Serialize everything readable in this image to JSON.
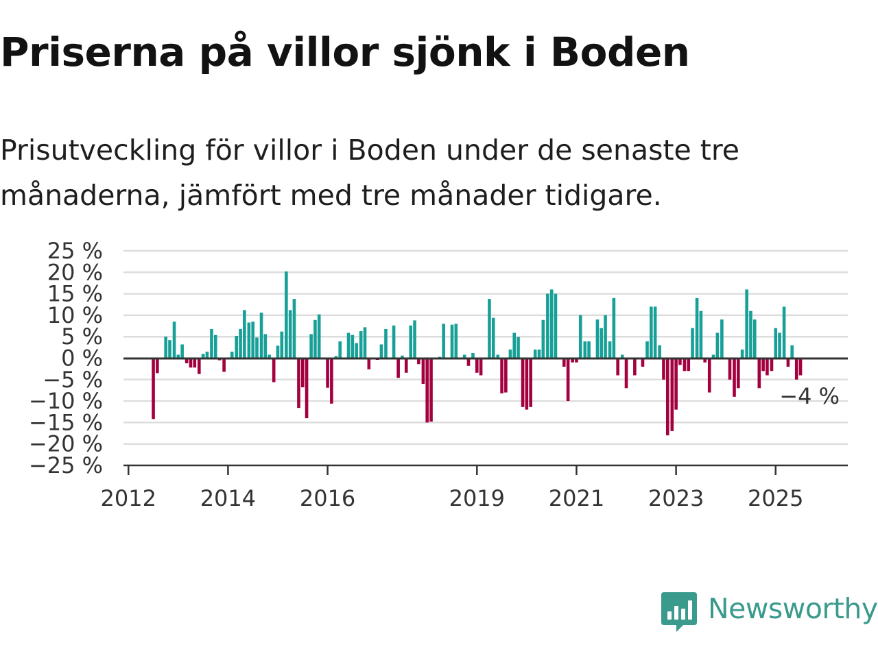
{
  "title": "Priserna på villor sjönk i Boden",
  "subtitle": "Prisutveckling för villor i Boden under de senaste tre månaderna, jämfört med tre månader tidigare.",
  "brand": {
    "name": "Newsworthy",
    "color": "#3a9a8c",
    "icon": "bar-chart-speech-bubble-icon"
  },
  "colors": {
    "positive": "#17a097",
    "negative": "#a3003f",
    "grid": "#dddddd",
    "zero_line": "#333333"
  },
  "chart_data": {
    "type": "bar",
    "title": "Priserna på villor sjönk i Boden",
    "xlabel": "",
    "ylabel": "",
    "ylim": [
      -25,
      25
    ],
    "yticks": [
      25,
      20,
      15,
      10,
      5,
      0,
      -5,
      -10,
      -15,
      -20,
      -25
    ],
    "ytick_labels": [
      "25 %",
      "20 %",
      "15 %",
      "10 %",
      "5 %",
      "0 %",
      "−5 %",
      "−10 %",
      "−15 %",
      "−20 %",
      "−25 %"
    ],
    "xticks": [
      2012,
      2014,
      2016,
      2019,
      2021,
      2023,
      2025
    ],
    "xtick_labels": [
      "2012",
      "2014",
      "2016",
      "2019",
      "2021",
      "2023",
      "2025"
    ],
    "xlim": [
      2011.9,
      2026.45
    ],
    "grid": true,
    "legend": "none",
    "last_value_label": "−4 %",
    "bars": [
      {
        "x": 2012.5,
        "v": -14.2
      },
      {
        "x": 2012.58,
        "v": -3.5
      },
      {
        "x": 2012.75,
        "v": 5.0
      },
      {
        "x": 2012.83,
        "v": 4.2
      },
      {
        "x": 2012.92,
        "v": 8.5
      },
      {
        "x": 2013.0,
        "v": 0.8
      },
      {
        "x": 2013.08,
        "v": 3.2
      },
      {
        "x": 2013.17,
        "v": -1.2
      },
      {
        "x": 2013.25,
        "v": -2.2
      },
      {
        "x": 2013.33,
        "v": -2.2
      },
      {
        "x": 2013.42,
        "v": -3.7
      },
      {
        "x": 2013.5,
        "v": 1.0
      },
      {
        "x": 2013.58,
        "v": 1.5
      },
      {
        "x": 2013.67,
        "v": 6.8
      },
      {
        "x": 2013.75,
        "v": 5.4
      },
      {
        "x": 2013.83,
        "v": -0.5
      },
      {
        "x": 2013.92,
        "v": -3.2
      },
      {
        "x": 2014.08,
        "v": 1.5
      },
      {
        "x": 2014.17,
        "v": 5.2
      },
      {
        "x": 2014.25,
        "v": 6.8
      },
      {
        "x": 2014.33,
        "v": 11.2
      },
      {
        "x": 2014.42,
        "v": 8.3
      },
      {
        "x": 2014.5,
        "v": 8.5
      },
      {
        "x": 2014.58,
        "v": 4.8
      },
      {
        "x": 2014.67,
        "v": 10.6
      },
      {
        "x": 2014.75,
        "v": 5.6
      },
      {
        "x": 2014.83,
        "v": 0.8
      },
      {
        "x": 2014.92,
        "v": -5.6
      },
      {
        "x": 2015.0,
        "v": 2.9
      },
      {
        "x": 2015.08,
        "v": 6.2
      },
      {
        "x": 2015.17,
        "v": 20.2
      },
      {
        "x": 2015.25,
        "v": 11.2
      },
      {
        "x": 2015.33,
        "v": 13.8
      },
      {
        "x": 2015.42,
        "v": -11.6
      },
      {
        "x": 2015.5,
        "v": -6.8
      },
      {
        "x": 2015.58,
        "v": -14.0
      },
      {
        "x": 2015.67,
        "v": 5.6
      },
      {
        "x": 2015.75,
        "v": 8.9
      },
      {
        "x": 2015.83,
        "v": 10.2
      },
      {
        "x": 2016.0,
        "v": -6.9
      },
      {
        "x": 2016.08,
        "v": -10.6
      },
      {
        "x": 2016.17,
        "v": 0.5
      },
      {
        "x": 2016.25,
        "v": 3.9
      },
      {
        "x": 2016.42,
        "v": 5.9
      },
      {
        "x": 2016.5,
        "v": 5.4
      },
      {
        "x": 2016.58,
        "v": 3.5
      },
      {
        "x": 2016.67,
        "v": 6.3
      },
      {
        "x": 2016.75,
        "v": 7.2
      },
      {
        "x": 2016.83,
        "v": -2.6
      },
      {
        "x": 2017.0,
        "v": -0.4
      },
      {
        "x": 2017.08,
        "v": 3.2
      },
      {
        "x": 2017.17,
        "v": 6.8
      },
      {
        "x": 2017.33,
        "v": 7.6
      },
      {
        "x": 2017.42,
        "v": -4.6
      },
      {
        "x": 2017.5,
        "v": 0.6
      },
      {
        "x": 2017.58,
        "v": -3.4
      },
      {
        "x": 2017.67,
        "v": 7.6
      },
      {
        "x": 2017.75,
        "v": 8.8
      },
      {
        "x": 2017.83,
        "v": -1.4
      },
      {
        "x": 2017.92,
        "v": -6.0
      },
      {
        "x": 2018.0,
        "v": -15.0
      },
      {
        "x": 2018.08,
        "v": -14.8
      },
      {
        "x": 2018.25,
        "v": 0.3
      },
      {
        "x": 2018.33,
        "v": 8.0
      },
      {
        "x": 2018.5,
        "v": 7.8
      },
      {
        "x": 2018.58,
        "v": 8.0
      },
      {
        "x": 2018.75,
        "v": 0.8
      },
      {
        "x": 2018.83,
        "v": -1.8
      },
      {
        "x": 2018.92,
        "v": 1.2
      },
      {
        "x": 2019.0,
        "v": -3.4
      },
      {
        "x": 2019.08,
        "v": -4.0
      },
      {
        "x": 2019.25,
        "v": 13.8
      },
      {
        "x": 2019.33,
        "v": 9.4
      },
      {
        "x": 2019.42,
        "v": 0.8
      },
      {
        "x": 2019.5,
        "v": -8.2
      },
      {
        "x": 2019.58,
        "v": -8.0
      },
      {
        "x": 2019.67,
        "v": 2.0
      },
      {
        "x": 2019.75,
        "v": 5.9
      },
      {
        "x": 2019.83,
        "v": 4.9
      },
      {
        "x": 2019.92,
        "v": -11.4
      },
      {
        "x": 2020.0,
        "v": -12.0
      },
      {
        "x": 2020.08,
        "v": -11.4
      },
      {
        "x": 2020.17,
        "v": 2.0
      },
      {
        "x": 2020.25,
        "v": 2.0
      },
      {
        "x": 2020.33,
        "v": 8.9
      },
      {
        "x": 2020.42,
        "v": 15.0
      },
      {
        "x": 2020.5,
        "v": 16.0
      },
      {
        "x": 2020.58,
        "v": 15.0
      },
      {
        "x": 2020.75,
        "v": -2.0
      },
      {
        "x": 2020.83,
        "v": -10.0
      },
      {
        "x": 2020.92,
        "v": -1.0
      },
      {
        "x": 2021.0,
        "v": -1.0
      },
      {
        "x": 2021.08,
        "v": 10.0
      },
      {
        "x": 2021.17,
        "v": 3.9
      },
      {
        "x": 2021.25,
        "v": 3.9
      },
      {
        "x": 2021.42,
        "v": 9.0
      },
      {
        "x": 2021.5,
        "v": 7.0
      },
      {
        "x": 2021.58,
        "v": 10.0
      },
      {
        "x": 2021.67,
        "v": 3.9
      },
      {
        "x": 2021.75,
        "v": 14.0
      },
      {
        "x": 2021.83,
        "v": -4.0
      },
      {
        "x": 2021.92,
        "v": 0.8
      },
      {
        "x": 2022.0,
        "v": -7.0
      },
      {
        "x": 2022.17,
        "v": -4.0
      },
      {
        "x": 2022.33,
        "v": -2.0
      },
      {
        "x": 2022.42,
        "v": 3.9
      },
      {
        "x": 2022.5,
        "v": 12.0
      },
      {
        "x": 2022.58,
        "v": 12.0
      },
      {
        "x": 2022.67,
        "v": 3.0
      },
      {
        "x": 2022.75,
        "v": -5.0
      },
      {
        "x": 2022.83,
        "v": -18.0
      },
      {
        "x": 2022.92,
        "v": -17.0
      },
      {
        "x": 2023.0,
        "v": -12.0
      },
      {
        "x": 2023.08,
        "v": -1.6
      },
      {
        "x": 2023.17,
        "v": -3.0
      },
      {
        "x": 2023.25,
        "v": -3.0
      },
      {
        "x": 2023.33,
        "v": 7.0
      },
      {
        "x": 2023.42,
        "v": 14.0
      },
      {
        "x": 2023.5,
        "v": 11.0
      },
      {
        "x": 2023.58,
        "v": -1.0
      },
      {
        "x": 2023.67,
        "v": -8.0
      },
      {
        "x": 2023.75,
        "v": 0.8
      },
      {
        "x": 2023.83,
        "v": 5.9
      },
      {
        "x": 2023.92,
        "v": 9.0
      },
      {
        "x": 2024.08,
        "v": -5.0
      },
      {
        "x": 2024.17,
        "v": -9.0
      },
      {
        "x": 2024.25,
        "v": -7.0
      },
      {
        "x": 2024.33,
        "v": 2.0
      },
      {
        "x": 2024.42,
        "v": 16.0
      },
      {
        "x": 2024.5,
        "v": 11.0
      },
      {
        "x": 2024.58,
        "v": 9.0
      },
      {
        "x": 2024.67,
        "v": -7.0
      },
      {
        "x": 2024.75,
        "v": -3.0
      },
      {
        "x": 2024.83,
        "v": -4.0
      },
      {
        "x": 2024.92,
        "v": -3.0
      },
      {
        "x": 2025.0,
        "v": 7.0
      },
      {
        "x": 2025.08,
        "v": 5.9
      },
      {
        "x": 2025.17,
        "v": 12.0
      },
      {
        "x": 2025.25,
        "v": -2.0
      },
      {
        "x": 2025.33,
        "v": 3.0
      },
      {
        "x": 2025.42,
        "v": -5.0
      },
      {
        "x": 2025.5,
        "v": -4.0
      }
    ]
  }
}
